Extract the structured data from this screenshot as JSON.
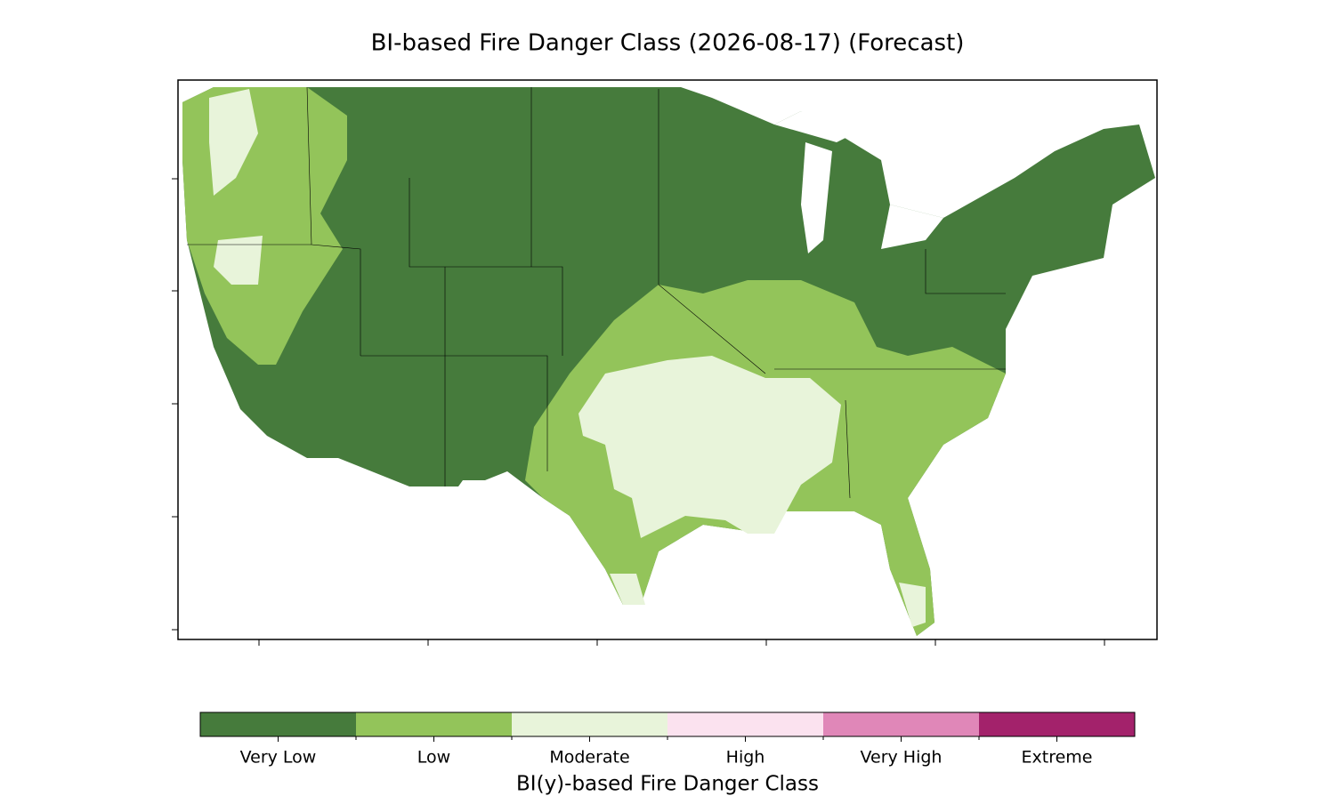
{
  "title": "BI-based Fire Danger Class (2026-08-17) (Forecast)",
  "legend": {
    "title": "BI(y)-based Fire Danger Class",
    "classes": [
      {
        "label": "Very Low",
        "color": "#467b3c"
      },
      {
        "label": "Low",
        "color": "#93c45a"
      },
      {
        "label": "Moderate",
        "color": "#e8f4da"
      },
      {
        "label": "High",
        "color": "#fbe2ef"
      },
      {
        "label": "Very High",
        "color": "#e087b8"
      },
      {
        "label": "Extreme",
        "color": "#a3226b"
      }
    ]
  }
}
